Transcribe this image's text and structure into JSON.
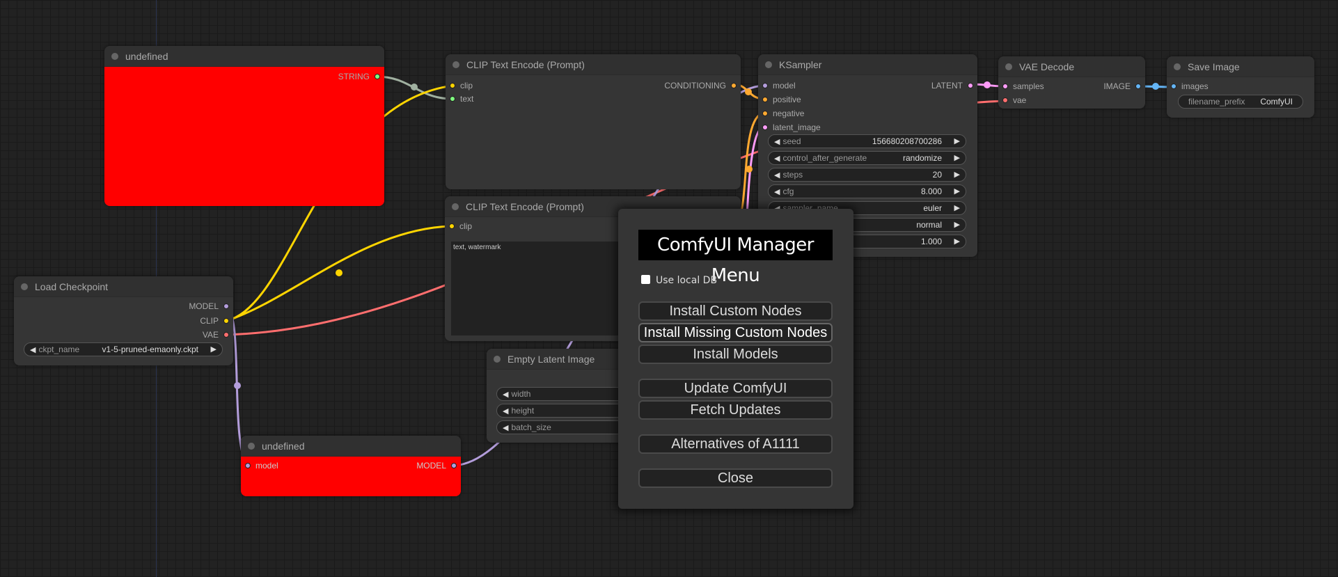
{
  "nodes": {
    "undefined_top": {
      "title": "undefined",
      "outputs": [
        "STRING"
      ],
      "color": "#ff0000"
    },
    "clip_encode_1": {
      "title": "CLIP Text Encode (Prompt)",
      "inputs": [
        "clip",
        "text"
      ],
      "outputs": [
        "CONDITIONING"
      ]
    },
    "ksampler": {
      "title": "KSampler",
      "inputs": [
        "model",
        "positive",
        "negative",
        "latent_image"
      ],
      "outputs": [
        "LATENT"
      ],
      "widgets": [
        {
          "name": "seed",
          "value": "156680208700286"
        },
        {
          "name": "control_after_generate",
          "value": "randomize"
        },
        {
          "name": "steps",
          "value": "20"
        },
        {
          "name": "cfg",
          "value": "8.000"
        },
        {
          "name": "sampler_name",
          "value": "euler"
        },
        {
          "name": "",
          "value": "normal"
        },
        {
          "name": "",
          "value": "1.000"
        }
      ]
    },
    "vae_decode": {
      "title": "VAE Decode",
      "inputs": [
        "samples",
        "vae"
      ],
      "outputs": [
        "IMAGE"
      ]
    },
    "save_image": {
      "title": "Save Image",
      "inputs": [
        "images"
      ],
      "widgets": [
        {
          "name": "filename_prefix",
          "value": "ComfyUI"
        }
      ]
    },
    "clip_encode_2": {
      "title": "CLIP Text Encode (Prompt)",
      "inputs": [
        "clip"
      ],
      "text": "text, watermark"
    },
    "load_checkpoint": {
      "title": "Load Checkpoint",
      "outputs": [
        "MODEL",
        "CLIP",
        "VAE"
      ],
      "widgets": [
        {
          "name": "ckpt_name",
          "value": "v1-5-pruned-emaonly.ckpt"
        }
      ]
    },
    "empty_latent": {
      "title": "Empty Latent Image",
      "widgets": [
        {
          "name": "width"
        },
        {
          "name": "height"
        },
        {
          "name": "batch_size"
        }
      ]
    },
    "undefined_bottom": {
      "title": "undefined",
      "inputs": [
        "model"
      ],
      "outputs": [
        "MODEL"
      ],
      "color": "#ff0000"
    }
  },
  "slot_colors": {
    "clip": "#ffd500",
    "string": "#7fff7f",
    "conditioning": "#ffa931",
    "model": "#b39ddb",
    "latent": "#ff9cf9",
    "vae": "#ff6e6e",
    "image": "#64b5f6"
  },
  "manager_menu": {
    "title": "ComfyUI Manager Menu",
    "use_local_db": {
      "label": "Use local DB",
      "checked": false
    },
    "buttons": [
      "Install Custom Nodes",
      "Install Missing Custom Nodes",
      "Install Models",
      "Update ComfyUI",
      "Fetch Updates",
      "Alternatives of A1111",
      "Close"
    ]
  }
}
